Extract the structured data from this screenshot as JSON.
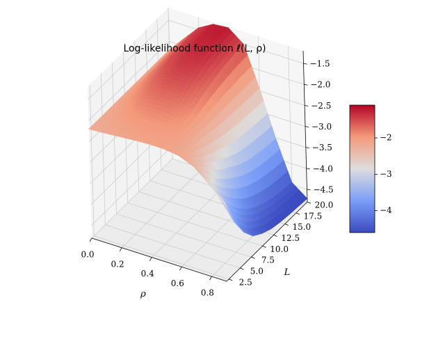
{
  "chart_data": {
    "type": "surface3d",
    "title": "Log-likelihood function ℓ(L, ρ)",
    "xlabel": "ρ",
    "ylabel": "L",
    "zlabel": "",
    "xlim": [
      0.0,
      0.9
    ],
    "ylim": [
      2.0,
      20.0
    ],
    "zlim": [
      -4.8,
      -1.2
    ],
    "x_ticks": [
      "0.0",
      "0.2",
      "0.4",
      "0.6",
      "0.8"
    ],
    "y_ticks": [
      "2.5",
      "5.0",
      "7.5",
      "10.0",
      "12.5",
      "15.0",
      "17.5",
      "20.0"
    ],
    "z_ticks": [
      "−4.5",
      "−4.0",
      "−3.5",
      "−3.0",
      "−2.5",
      "−2.0",
      "−1.5"
    ],
    "colormap": "coolwarm",
    "colorbar": {
      "range": [
        -4.6,
        -1.1
      ],
      "ticks": [
        "−4",
        "−3",
        "−2"
      ]
    },
    "rho": [
      0.0,
      0.1,
      0.2,
      0.3,
      0.4,
      0.5,
      0.6,
      0.7,
      0.8,
      0.9
    ],
    "L": [
      2.0,
      4.0,
      6.0,
      8.0,
      10.0,
      12.0,
      14.0,
      16.0,
      18.0,
      20.0
    ],
    "z": [
      [
        -2.2,
        -2.2,
        -2.2,
        -2.2,
        -2.2,
        -2.2,
        -2.2,
        -2.2,
        -2.2,
        -2.2
      ],
      [
        -2.18,
        -2.12,
        -2.05,
        -1.98,
        -1.92,
        -1.87,
        -1.85,
        -1.83,
        -1.82,
        -1.82
      ],
      [
        -2.15,
        -2.05,
        -1.93,
        -1.8,
        -1.68,
        -1.58,
        -1.52,
        -1.48,
        -1.46,
        -1.45
      ],
      [
        -2.12,
        -2.02,
        -1.88,
        -1.72,
        -1.56,
        -1.44,
        -1.36,
        -1.3,
        -1.27,
        -1.25
      ],
      [
        -2.1,
        -2.02,
        -1.9,
        -1.76,
        -1.6,
        -1.47,
        -1.37,
        -1.3,
        -1.25,
        -1.22
      ],
      [
        -2.1,
        -2.06,
        -1.98,
        -1.9,
        -1.8,
        -1.7,
        -1.62,
        -1.56,
        -1.52,
        -1.5
      ],
      [
        -2.15,
        -2.18,
        -2.25,
        -2.3,
        -2.35,
        -2.38,
        -2.4,
        -2.42,
        -2.43,
        -2.44
      ],
      [
        -2.3,
        -2.5,
        -2.8,
        -3.0,
        -3.15,
        -3.3,
        -3.4,
        -3.45,
        -3.5,
        -3.52
      ],
      [
        -2.6,
        -3.1,
        -3.5,
        -3.8,
        -4.05,
        -4.2,
        -4.3,
        -4.38,
        -4.42,
        -4.45
      ],
      [
        -2.9,
        -3.6,
        -4.05,
        -4.35,
        -4.5,
        -4.6,
        -4.65,
        -4.68,
        -4.7,
        -4.72
      ]
    ]
  }
}
